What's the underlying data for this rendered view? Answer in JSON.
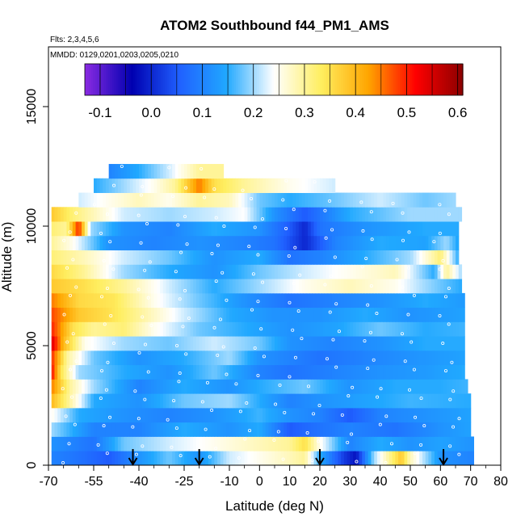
{
  "chart_data": {
    "type": "heatmap",
    "title": "ATOM2 Southbound f44_PM1_AMS",
    "subtitle_flights": "Flts: 2,3,4,5,6",
    "subtitle_dates": "MMDD: 0129,0201,0203,0205,0210",
    "xlabel": "Latitude (deg N)",
    "ylabel": "Altitude (m)",
    "xlim": [
      -70,
      80
    ],
    "ylim": [
      0,
      17500
    ],
    "x_ticks_labeled": [
      "-70",
      "-55",
      "-40",
      "-25",
      "-10",
      "0",
      "10",
      "20",
      "30",
      "40",
      "50",
      "60",
      "70",
      "80"
    ],
    "x_ticks_labeled_values": [
      -70,
      -55,
      -40,
      -25,
      -10,
      0,
      10,
      20,
      30,
      40,
      50,
      60,
      70,
      80
    ],
    "x_minor_ticks": [
      -65,
      -60,
      -50,
      -45,
      -35,
      -30,
      -20,
      -15,
      -5,
      5,
      15,
      25,
      35,
      45,
      55,
      65,
      75
    ],
    "y_ticks": [
      "0",
      "5000",
      "10000",
      "15000"
    ],
    "y_ticks_values": [
      0,
      5000,
      10000,
      15000
    ],
    "colorbar": {
      "ticks": [
        "-0.1",
        "0.0",
        "0.1",
        "0.2",
        "0.3",
        "0.4",
        "0.5",
        "0.6"
      ],
      "tick_values": [
        -0.1,
        0.0,
        0.1,
        0.2,
        0.3,
        0.4,
        0.5,
        0.6
      ],
      "range": [
        -0.13,
        0.61
      ],
      "palette": [
        "#8a2be2",
        "#0000b0",
        "#2060ff",
        "#20a8ff",
        "#ffffff",
        "#ffee60",
        "#ffa500",
        "#ff0000",
        "#8b0000"
      ]
    },
    "arrows_latitude": [
      -42,
      -20,
      20,
      61
    ],
    "bands": [
      {
        "alt": 300,
        "x0": -69,
        "x1": 71,
        "pts": [
          [
            -69,
            0.1
          ],
          [
            -60,
            0.08
          ],
          [
            -50,
            0.05
          ],
          [
            -40,
            0.12
          ],
          [
            -30,
            0.18
          ],
          [
            -20,
            0.12
          ],
          [
            -10,
            0.22
          ],
          [
            0,
            0.25
          ],
          [
            10,
            0.28
          ],
          [
            15,
            0.3
          ],
          [
            20,
            0.15
          ],
          [
            28,
            0.02
          ],
          [
            32,
            -0.02
          ],
          [
            38,
            0.2
          ],
          [
            44,
            0.32
          ],
          [
            47,
            0.38
          ],
          [
            50,
            0.28
          ],
          [
            60,
            0.12
          ],
          [
            71,
            0.1
          ]
        ]
      },
      {
        "alt": 900,
        "x0": -69,
        "x1": 71,
        "pts": [
          [
            -69,
            0.12
          ],
          [
            -55,
            0.08
          ],
          [
            -45,
            0.18
          ],
          [
            -30,
            0.22
          ],
          [
            -15,
            0.25
          ],
          [
            0,
            0.28
          ],
          [
            10,
            0.3
          ],
          [
            15,
            0.35
          ],
          [
            20,
            0.25
          ],
          [
            30,
            0.1
          ],
          [
            40,
            0.15
          ],
          [
            50,
            0.12
          ],
          [
            60,
            0.14
          ],
          [
            71,
            0.12
          ]
        ]
      },
      {
        "alt": 1500,
        "x0": -69,
        "x1": 70,
        "pts": [
          [
            -69,
            0.2
          ],
          [
            -55,
            0.1
          ],
          [
            -40,
            0.1
          ],
          [
            -25,
            0.15
          ],
          [
            -10,
            0.12
          ],
          [
            0,
            0.15
          ],
          [
            10,
            0.05
          ],
          [
            20,
            0.08
          ],
          [
            30,
            0.1
          ],
          [
            45,
            0.08
          ],
          [
            60,
            0.12
          ],
          [
            70,
            0.14
          ]
        ]
      },
      {
        "alt": 2100,
        "x0": -69,
        "x1": 70,
        "pts": [
          [
            -69,
            0.25
          ],
          [
            -60,
            0.15
          ],
          [
            -45,
            0.12
          ],
          [
            -30,
            0.1
          ],
          [
            -15,
            0.12
          ],
          [
            0,
            0.16
          ],
          [
            10,
            0.12
          ],
          [
            20,
            0.1
          ],
          [
            30,
            0.05
          ],
          [
            40,
            0.1
          ],
          [
            55,
            0.12
          ],
          [
            70,
            0.14
          ]
        ]
      },
      {
        "alt": 2700,
        "x0": -69,
        "x1": 70,
        "pts": [
          [
            -69,
            0.4
          ],
          [
            -62,
            0.28
          ],
          [
            -55,
            0.15
          ],
          [
            -40,
            0.12
          ],
          [
            -25,
            0.18
          ],
          [
            -10,
            0.2
          ],
          [
            0,
            0.15
          ],
          [
            10,
            0.1
          ],
          [
            20,
            0.12
          ],
          [
            35,
            0.14
          ],
          [
            50,
            0.16
          ],
          [
            70,
            0.15
          ]
        ]
      },
      {
        "alt": 3300,
        "x0": -69,
        "x1": 69,
        "pts": [
          [
            -69,
            0.45
          ],
          [
            -63,
            0.3
          ],
          [
            -55,
            0.2
          ],
          [
            -40,
            0.1
          ],
          [
            -25,
            0.15
          ],
          [
            -10,
            0.12
          ],
          [
            0,
            0.15
          ],
          [
            15,
            0.18
          ],
          [
            30,
            0.12
          ],
          [
            45,
            0.15
          ],
          [
            60,
            0.15
          ],
          [
            69,
            0.16
          ]
        ]
      },
      {
        "alt": 3900,
        "x0": -69,
        "x1": 68,
        "pts": [
          [
            -69,
            0.52
          ],
          [
            -66,
            0.35
          ],
          [
            -60,
            0.2
          ],
          [
            -45,
            0.15
          ],
          [
            -30,
            0.12
          ],
          [
            -15,
            0.18
          ],
          [
            0,
            0.1
          ],
          [
            10,
            0.08
          ],
          [
            25,
            0.1
          ],
          [
            40,
            0.12
          ],
          [
            55,
            0.13
          ],
          [
            68,
            0.15
          ]
        ]
      },
      {
        "alt": 4500,
        "x0": -69,
        "x1": 68,
        "pts": [
          [
            -69,
            0.5
          ],
          [
            -64,
            0.3
          ],
          [
            -55,
            0.18
          ],
          [
            -40,
            0.12
          ],
          [
            -25,
            0.15
          ],
          [
            -10,
            0.2
          ],
          [
            0,
            0.12
          ],
          [
            10,
            0.1
          ],
          [
            20,
            0.08
          ],
          [
            35,
            0.1
          ],
          [
            50,
            0.12
          ],
          [
            68,
            0.14
          ]
        ]
      },
      {
        "alt": 5100,
        "x0": -69,
        "x1": 68,
        "pts": [
          [
            -69,
            0.55
          ],
          [
            -65,
            0.4
          ],
          [
            -58,
            0.25
          ],
          [
            -45,
            0.2
          ],
          [
            -30,
            0.18
          ],
          [
            -15,
            0.22
          ],
          [
            0,
            0.18
          ],
          [
            10,
            0.12
          ],
          [
            25,
            0.1
          ],
          [
            40,
            0.12
          ],
          [
            55,
            0.15
          ],
          [
            68,
            0.15
          ]
        ]
      },
      {
        "alt": 5700,
        "x0": -69,
        "x1": 68,
        "pts": [
          [
            -69,
            0.5
          ],
          [
            -62,
            0.35
          ],
          [
            -55,
            0.3
          ],
          [
            -45,
            0.32
          ],
          [
            -35,
            0.25
          ],
          [
            -20,
            0.18
          ],
          [
            -5,
            0.15
          ],
          [
            10,
            0.12
          ],
          [
            25,
            0.14
          ],
          [
            40,
            0.18
          ],
          [
            55,
            0.15
          ],
          [
            68,
            0.16
          ]
        ]
      },
      {
        "alt": 6300,
        "x0": -69,
        "x1": 68,
        "pts": [
          [
            -69,
            0.48
          ],
          [
            -60,
            0.38
          ],
          [
            -50,
            0.35
          ],
          [
            -40,
            0.3
          ],
          [
            -25,
            0.22
          ],
          [
            -10,
            0.15
          ],
          [
            5,
            0.12
          ],
          [
            20,
            0.12
          ],
          [
            35,
            0.15
          ],
          [
            50,
            0.12
          ],
          [
            68,
            0.14
          ]
        ]
      },
      {
        "alt": 6900,
        "x0": -69,
        "x1": 68,
        "pts": [
          [
            -69,
            0.45
          ],
          [
            -60,
            0.36
          ],
          [
            -48,
            0.34
          ],
          [
            -35,
            0.25
          ],
          [
            -20,
            0.18
          ],
          [
            -5,
            0.12
          ],
          [
            10,
            0.08
          ],
          [
            25,
            0.1
          ],
          [
            40,
            0.12
          ],
          [
            55,
            0.15
          ],
          [
            68,
            0.13
          ]
        ]
      },
      {
        "alt": 7500,
        "x0": -69,
        "x1": 67,
        "pts": [
          [
            -69,
            0.38
          ],
          [
            -58,
            0.35
          ],
          [
            -45,
            0.3
          ],
          [
            -30,
            0.22
          ],
          [
            -15,
            0.15
          ],
          [
            0,
            0.2
          ],
          [
            15,
            0.25
          ],
          [
            30,
            0.28
          ],
          [
            45,
            0.25
          ],
          [
            55,
            0.2
          ],
          [
            67,
            0.15
          ]
        ]
      },
      {
        "alt": 8100,
        "x0": -69,
        "x1": 67,
        "pts": [
          [
            -69,
            0.36
          ],
          [
            -58,
            0.3
          ],
          [
            -45,
            0.2
          ],
          [
            -30,
            0.15
          ],
          [
            -15,
            0.12
          ],
          [
            0,
            0.18
          ],
          [
            15,
            0.22
          ],
          [
            30,
            0.25
          ],
          [
            45,
            0.28
          ],
          [
            58,
            0.15
          ],
          [
            62,
            0.3
          ],
          [
            67,
            0.2
          ]
        ]
      },
      {
        "alt": 8700,
        "x0": -69,
        "x1": 66,
        "pts": [
          [
            -69,
            0.32
          ],
          [
            -58,
            0.28
          ],
          [
            -45,
            0.22
          ],
          [
            -30,
            0.18
          ],
          [
            -15,
            0.12
          ],
          [
            0,
            0.15
          ],
          [
            10,
            0.08
          ],
          [
            20,
            0.1
          ],
          [
            35,
            0.15
          ],
          [
            50,
            0.2
          ],
          [
            60,
            0.32
          ],
          [
            66,
            0.15
          ]
        ]
      },
      {
        "alt": 9300,
        "x0": -69,
        "x1": 66,
        "pts": [
          [
            -69,
            0.3
          ],
          [
            -62,
            0.25
          ],
          [
            -50,
            0.12
          ],
          [
            -35,
            0.1
          ],
          [
            -20,
            0.12
          ],
          [
            -5,
            0.1
          ],
          [
            5,
            0.08
          ],
          [
            15,
            0.0
          ],
          [
            25,
            0.1
          ],
          [
            40,
            0.15
          ],
          [
            55,
            0.14
          ],
          [
            62,
            0.2
          ],
          [
            66,
            0.14
          ]
        ]
      },
      {
        "alt": 9900,
        "x0": -69,
        "x1": 66,
        "pts": [
          [
            -69,
            0.32
          ],
          [
            -64,
            0.3
          ],
          [
            -60,
            0.5
          ],
          [
            -56,
            0.2
          ],
          [
            -45,
            0.12
          ],
          [
            -30,
            0.1
          ],
          [
            -15,
            0.15
          ],
          [
            0,
            0.12
          ],
          [
            10,
            0.05
          ],
          [
            15,
            0.0
          ],
          [
            20,
            0.08
          ],
          [
            35,
            0.12
          ],
          [
            55,
            0.15
          ],
          [
            66,
            0.15
          ]
        ]
      },
      {
        "alt": 10500,
        "x0": -69,
        "x1": 67,
        "pts": [
          [
            -69,
            0.38
          ],
          [
            -62,
            0.32
          ],
          [
            -55,
            0.28
          ],
          [
            -45,
            0.22
          ],
          [
            -30,
            0.2
          ],
          [
            -15,
            0.22
          ],
          [
            -5,
            0.24
          ],
          [
            5,
            0.12
          ],
          [
            15,
            0.05
          ],
          [
            30,
            0.15
          ],
          [
            50,
            0.2
          ],
          [
            67,
            0.2
          ]
        ]
      },
      {
        "alt": 11100,
        "x0": -60,
        "x1": 65,
        "pts": [
          [
            -60,
            0.22
          ],
          [
            -50,
            0.25
          ],
          [
            -40,
            0.28
          ],
          [
            -30,
            0.25
          ],
          [
            -20,
            0.3
          ],
          [
            -10,
            0.28
          ],
          [
            0,
            0.18
          ],
          [
            10,
            0.15
          ],
          [
            25,
            0.18
          ],
          [
            40,
            0.22
          ],
          [
            55,
            0.18
          ],
          [
            65,
            0.2
          ]
        ]
      },
      {
        "alt": 11700,
        "x0": -55,
        "x1": 25,
        "pts": [
          [
            -55,
            0.15
          ],
          [
            -45,
            0.2
          ],
          [
            -35,
            0.25
          ],
          [
            -28,
            0.3
          ],
          [
            -20,
            0.45
          ],
          [
            -15,
            0.35
          ],
          [
            -5,
            0.3
          ],
          [
            10,
            0.25
          ],
          [
            25,
            0.22
          ]
        ]
      },
      {
        "alt": 12300,
        "x0": -50,
        "x1": -12,
        "pts": [
          [
            -50,
            0.1
          ],
          [
            -40,
            0.15
          ],
          [
            -30,
            0.22
          ],
          [
            -20,
            0.3
          ],
          [
            -12,
            0.3
          ]
        ]
      }
    ]
  }
}
